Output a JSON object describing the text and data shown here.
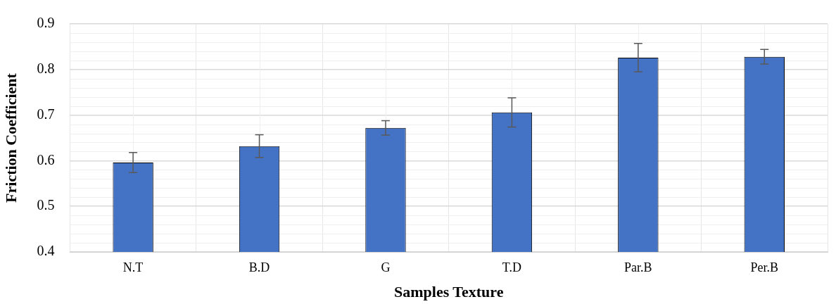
{
  "chart_data": {
    "type": "bar",
    "xlabel": "Samples Texture",
    "ylabel": "Friction Coefficient",
    "categories": [
      "N.T",
      "B.D",
      "G",
      "T.D",
      "Par.B",
      "Per.B"
    ],
    "values": [
      0.596,
      0.632,
      0.672,
      0.706,
      0.826,
      0.828
    ],
    "errors": [
      0.022,
      0.025,
      0.016,
      0.032,
      0.031,
      0.016
    ],
    "color": "#4472c4",
    "ylim": [
      0.4,
      0.9
    ],
    "yticks": [
      0.4,
      0.5,
      0.6,
      0.7,
      0.8,
      0.9
    ],
    "grid": true
  }
}
